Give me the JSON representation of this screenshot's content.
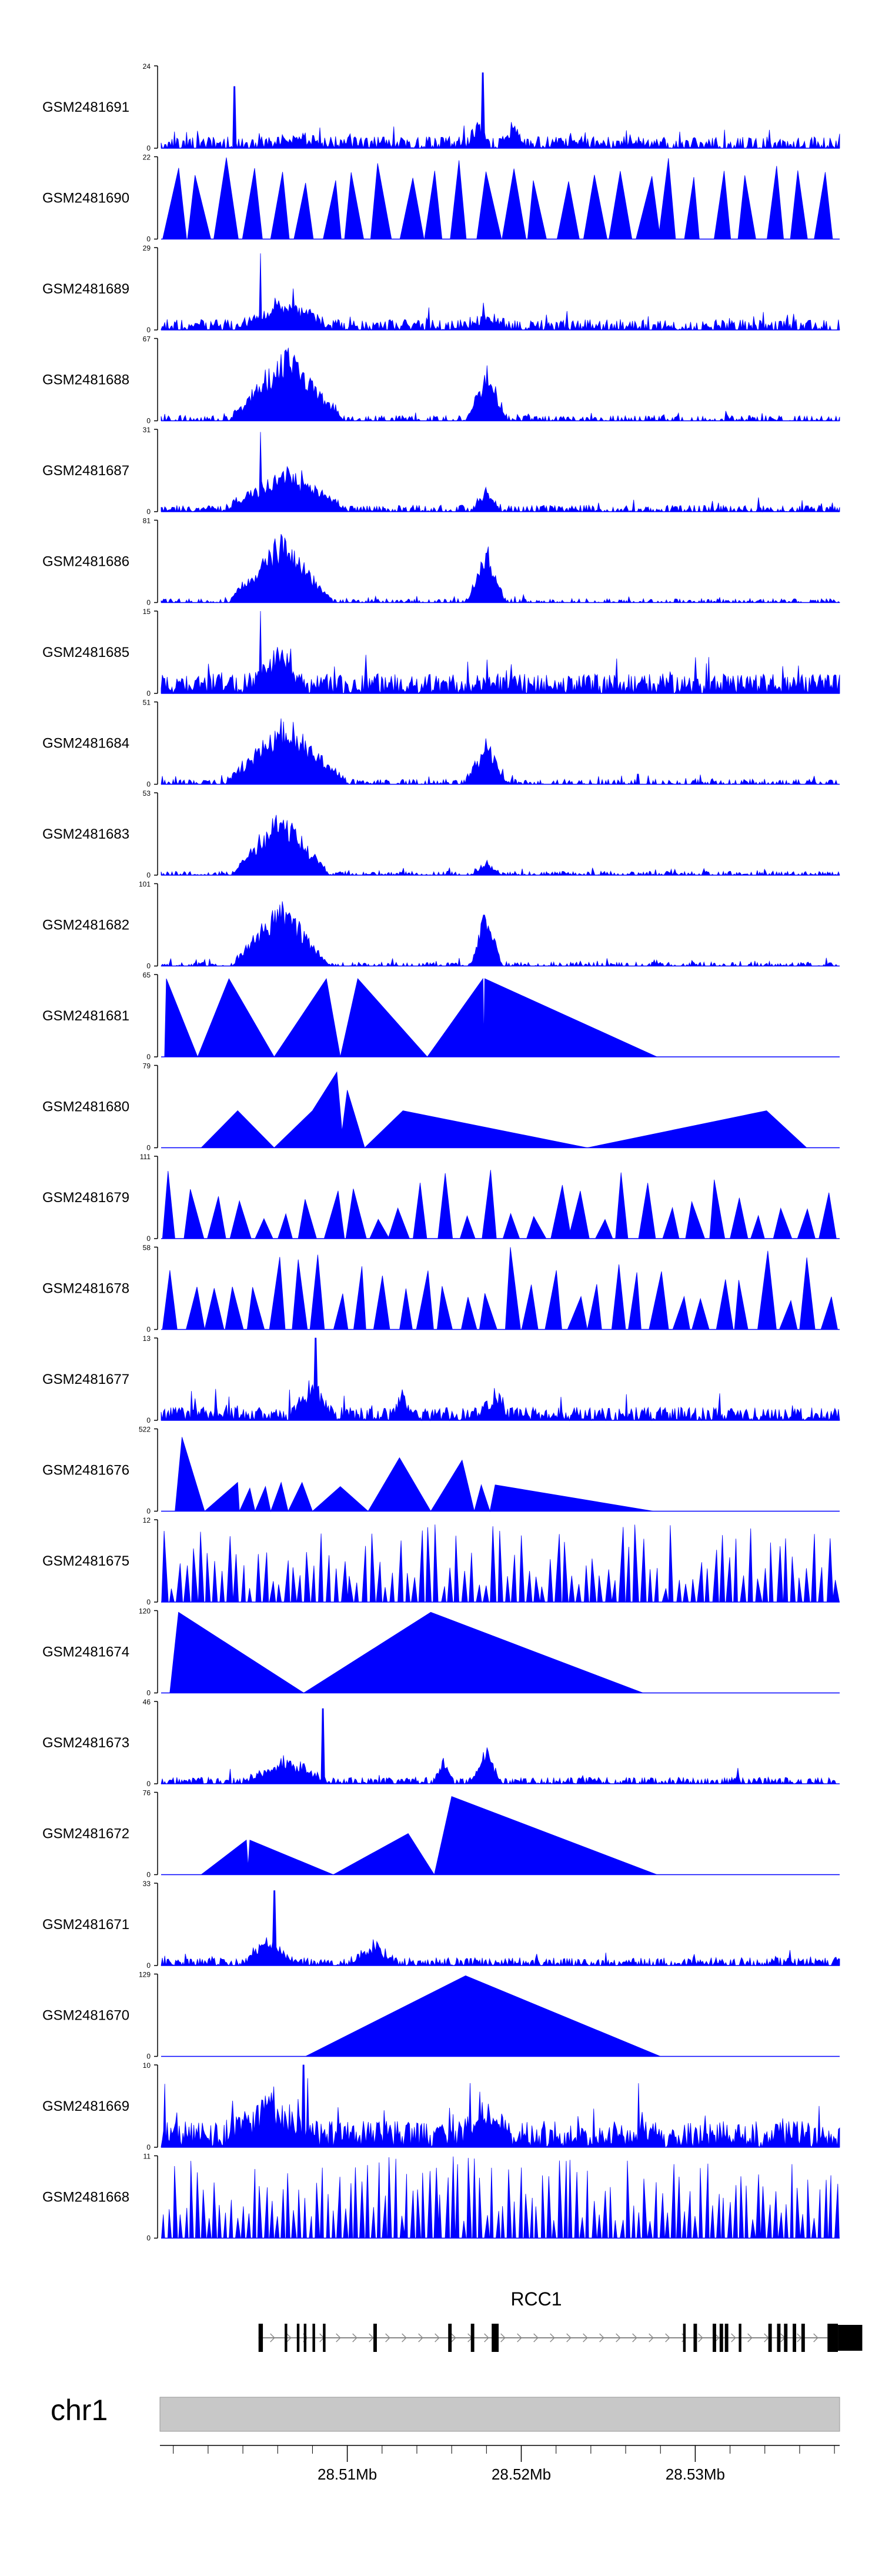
{
  "colors": {
    "signal": "#0000ff",
    "axis": "#000000",
    "chrom_band": "#c8c8c8",
    "gene": "#000000",
    "intron": "#888888",
    "baseline": "#000000"
  },
  "chart_data": {
    "type": "area",
    "title": "",
    "xlabel": "",
    "ylabel": "",
    "region": {
      "chrom": "chr1",
      "start": 28499300,
      "end": 28538300
    },
    "gene": {
      "name": "RCC1",
      "strand": "+",
      "intron_start": 28504900,
      "intron_end": 28537600,
      "exons": [
        [
          28504900,
          28505150
        ],
        [
          28506400,
          28506550
        ],
        [
          28507100,
          28507250
        ],
        [
          28507500,
          28507650
        ],
        [
          28508000,
          28508150
        ],
        [
          28508600,
          28508750
        ],
        [
          28511500,
          28511700
        ],
        [
          28515800,
          28516000
        ],
        [
          28517100,
          28517300
        ],
        [
          28518300,
          28518700
        ],
        [
          28529300,
          28529450
        ],
        [
          28529900,
          28530100
        ],
        [
          28531000,
          28531200
        ],
        [
          28531400,
          28531600
        ],
        [
          28531700,
          28531900
        ],
        [
          28532500,
          28532650
        ],
        [
          28534200,
          28534400
        ],
        [
          28534700,
          28534900
        ],
        [
          28535100,
          28535300
        ],
        [
          28535600,
          28535800
        ],
        [
          28536100,
          28536300
        ],
        [
          28537600,
          28538200
        ],
        [
          28538200,
          28539600
        ]
      ]
    },
    "x_axis": {
      "ticks_major": [
        28510000,
        28520000,
        28530000
      ],
      "tick_labels": [
        "28.51Mb",
        "28.52Mb",
        "28.53Mb"
      ],
      "ticks_minor": [
        28500000,
        28502000,
        28504000,
        28506000,
        28508000,
        28512000,
        28514000,
        28516000,
        28518000,
        28522000,
        28524000,
        28526000,
        28528000,
        28532000,
        28534000,
        28536000,
        28538000
      ]
    },
    "tracks": [
      {
        "name": "GSM2481691",
        "ymax": 24,
        "ymin": 0,
        "kind": "noise",
        "baseline": 0.09,
        "density": 0.82,
        "spikes": [
          [
            28517800,
            22
          ],
          [
            28503500,
            18
          ]
        ],
        "peaks": [
          [
            28507000,
            1500,
            0.1
          ],
          [
            28517500,
            600,
            0.3
          ],
          [
            28519500,
            800,
            0.25
          ]
        ]
      },
      {
        "name": "GSM2481690",
        "ymax": 22,
        "ymin": 0,
        "kind": "sparse",
        "seed": 7,
        "count": 26,
        "minH": 0.65,
        "maxH": 1.0
      },
      {
        "name": "GSM2481689",
        "ymax": 29,
        "ymin": 0,
        "kind": "noise",
        "baseline": 0.08,
        "density": 0.8,
        "spikes": [
          [
            28505000,
            27
          ]
        ],
        "peaks": [
          [
            28506500,
            2600,
            0.35
          ],
          [
            28518000,
            1400,
            0.12
          ]
        ]
      },
      {
        "name": "GSM2481688",
        "ymax": 67,
        "ymin": 0,
        "kind": "noise",
        "baseline": 0.04,
        "density": 0.55,
        "spikes": [],
        "peaks": [
          [
            28506500,
            3300,
            0.9
          ],
          [
            28518000,
            1200,
            0.62
          ]
        ]
      },
      {
        "name": "GSM2481687",
        "ymax": 31,
        "ymin": 0,
        "kind": "noise",
        "baseline": 0.05,
        "density": 0.75,
        "spikes": [
          [
            28505000,
            30
          ]
        ],
        "peaks": [
          [
            28506500,
            3600,
            0.5
          ],
          [
            28518000,
            900,
            0.25
          ]
        ]
      },
      {
        "name": "GSM2481686",
        "ymax": 81,
        "ymin": 0,
        "kind": "noise",
        "baseline": 0.03,
        "density": 0.5,
        "spikes": [],
        "peaks": [
          [
            28506200,
            3000,
            0.85
          ],
          [
            28518000,
            1100,
            0.75
          ]
        ]
      },
      {
        "name": "GSM2481685",
        "ymax": 15,
        "ymin": 0,
        "kind": "noise",
        "baseline": 0.15,
        "density": 0.9,
        "spikes": [
          [
            28505000,
            15
          ]
        ],
        "peaks": [
          [
            28506000,
            1800,
            0.45
          ]
        ]
      },
      {
        "name": "GSM2481684",
        "ymax": 51,
        "ymin": 0,
        "kind": "noise",
        "baseline": 0.04,
        "density": 0.6,
        "spikes": [],
        "peaks": [
          [
            28506500,
            3500,
            0.85
          ],
          [
            28518000,
            1200,
            0.55
          ]
        ]
      },
      {
        "name": "GSM2481683",
        "ymax": 53,
        "ymin": 0,
        "kind": "noise",
        "baseline": 0.03,
        "density": 0.6,
        "spikes": [],
        "peaks": [
          [
            28506200,
            2800,
            0.8
          ],
          [
            28518000,
            900,
            0.15
          ]
        ]
      },
      {
        "name": "GSM2481682",
        "ymax": 101,
        "ymin": 0,
        "kind": "noise",
        "baseline": 0.03,
        "density": 0.5,
        "spikes": [],
        "peaks": [
          [
            28506200,
            2800,
            0.85
          ],
          [
            28518000,
            900,
            0.75
          ]
        ]
      },
      {
        "name": "GSM2481681",
        "ymax": 65,
        "ymin": 0,
        "kind": "triangles",
        "points": [
          [
            28499500,
            0
          ],
          [
            28499600,
            0.95
          ],
          [
            28501400,
            0
          ],
          [
            28503200,
            0.95
          ],
          [
            28505800,
            0
          ],
          [
            28508800,
            0.95
          ],
          [
            28509600,
            0
          ],
          [
            28510600,
            0.95
          ],
          [
            28514600,
            0
          ],
          [
            28517800,
            0.95
          ],
          [
            28517850,
            0.2
          ],
          [
            28517900,
            0.95
          ],
          [
            28527800,
            0
          ]
        ]
      },
      {
        "name": "GSM2481680",
        "ymax": 79,
        "ymin": 0,
        "kind": "triangles",
        "points": [
          [
            28501600,
            0
          ],
          [
            28503700,
            0.45
          ],
          [
            28505800,
            0
          ],
          [
            28508000,
            0.45
          ],
          [
            28509400,
            0.92
          ],
          [
            28509700,
            0.2
          ],
          [
            28510000,
            0.7
          ],
          [
            28511000,
            0
          ],
          [
            28513200,
            0.45
          ],
          [
            28523800,
            0
          ],
          [
            28534100,
            0.45
          ],
          [
            28536400,
            0
          ]
        ]
      },
      {
        "name": "GSM2481679",
        "ymax": 111,
        "ymin": 0,
        "kind": "sparse",
        "seed": 19,
        "count": 30,
        "minH": 0.2,
        "maxH": 0.95
      },
      {
        "name": "GSM2481678",
        "ymax": 58,
        "ymin": 0,
        "kind": "sparse",
        "seed": 23,
        "count": 32,
        "minH": 0.35,
        "maxH": 1.0
      },
      {
        "name": "GSM2481677",
        "ymax": 13,
        "ymin": 0,
        "kind": "noise",
        "baseline": 0.1,
        "density": 0.85,
        "spikes": [
          [
            28508200,
            13
          ]
        ],
        "peaks": [
          [
            28508000,
            1400,
            0.4
          ],
          [
            28513200,
            800,
            0.3
          ],
          [
            28518500,
            800,
            0.3
          ]
        ]
      },
      {
        "name": "GSM2481676",
        "ymax": 522,
        "ymin": 0,
        "kind": "triangles",
        "points": [
          [
            28500100,
            0
          ],
          [
            28500500,
            0.9
          ],
          [
            28501800,
            0
          ],
          [
            28503700,
            0.35
          ],
          [
            28503800,
            0
          ],
          [
            28504400,
            0.28
          ],
          [
            28504700,
            0
          ],
          [
            28505300,
            0.3
          ],
          [
            28505600,
            0
          ],
          [
            28506200,
            0.35
          ],
          [
            28506600,
            0
          ],
          [
            28507400,
            0.35
          ],
          [
            28508000,
            0
          ],
          [
            28509600,
            0.3
          ],
          [
            28511200,
            0
          ],
          [
            28513000,
            0.65
          ],
          [
            28514800,
            0
          ],
          [
            28516600,
            0.62
          ],
          [
            28517300,
            0
          ],
          [
            28517700,
            0.32
          ],
          [
            28518200,
            0
          ],
          [
            28518500,
            0.32
          ],
          [
            28527600,
            0
          ]
        ]
      },
      {
        "name": "GSM2481675",
        "ymax": 12,
        "ymin": 0,
        "kind": "sparse",
        "seed": 41,
        "count": 95,
        "minH": 0.15,
        "maxH": 0.95
      },
      {
        "name": "GSM2481674",
        "ymax": 120,
        "ymin": 0,
        "kind": "triangles",
        "points": [
          [
            28499800,
            0
          ],
          [
            28500300,
            0.98
          ],
          [
            28507500,
            0
          ],
          [
            28514800,
            0.98
          ],
          [
            28527000,
            0
          ]
        ]
      },
      {
        "name": "GSM2481673",
        "ymax": 46,
        "ymin": 0,
        "kind": "noise",
        "baseline": 0.05,
        "density": 0.75,
        "spikes": [
          [
            28508600,
            42
          ]
        ],
        "peaks": [
          [
            28506500,
            2400,
            0.3
          ],
          [
            28518000,
            800,
            0.45
          ],
          [
            28515500,
            600,
            0.25
          ]
        ]
      },
      {
        "name": "GSM2481672",
        "ymax": 76,
        "ymin": 0,
        "kind": "triangles",
        "points": [
          [
            28501600,
            0
          ],
          [
            28504200,
            0.42
          ],
          [
            28504300,
            0.1
          ],
          [
            28504400,
            0.42
          ],
          [
            28509200,
            0
          ],
          [
            28513500,
            0.5
          ],
          [
            28515000,
            0
          ],
          [
            28516000,
            0.95
          ],
          [
            28527800,
            0
          ]
        ]
      },
      {
        "name": "GSM2481671",
        "ymax": 33,
        "ymin": 0,
        "kind": "noise",
        "baseline": 0.06,
        "density": 0.8,
        "spikes": [
          [
            28505800,
            30
          ]
        ],
        "peaks": [
          [
            28505500,
            1500,
            0.35
          ],
          [
            28511500,
            1400,
            0.25
          ]
        ]
      },
      {
        "name": "GSM2481670",
        "ymax": 129,
        "ymin": 0,
        "kind": "triangles",
        "points": [
          [
            28507600,
            0
          ],
          [
            28516800,
            0.98
          ],
          [
            28528000,
            0
          ]
        ]
      },
      {
        "name": "GSM2481669",
        "ymax": 10,
        "ymin": 0,
        "kind": "noise",
        "baseline": 0.2,
        "density": 0.95,
        "spikes": [
          [
            28507500,
            10
          ]
        ],
        "peaks": [
          [
            28505500,
            2500,
            0.4
          ],
          [
            28518000,
            1500,
            0.4
          ]
        ]
      },
      {
        "name": "GSM2481668",
        "ymax": 11,
        "ymin": 0,
        "kind": "sparse",
        "seed": 53,
        "count": 120,
        "minH": 0.2,
        "maxH": 1.0
      }
    ],
    "chromosome": "chr1"
  }
}
